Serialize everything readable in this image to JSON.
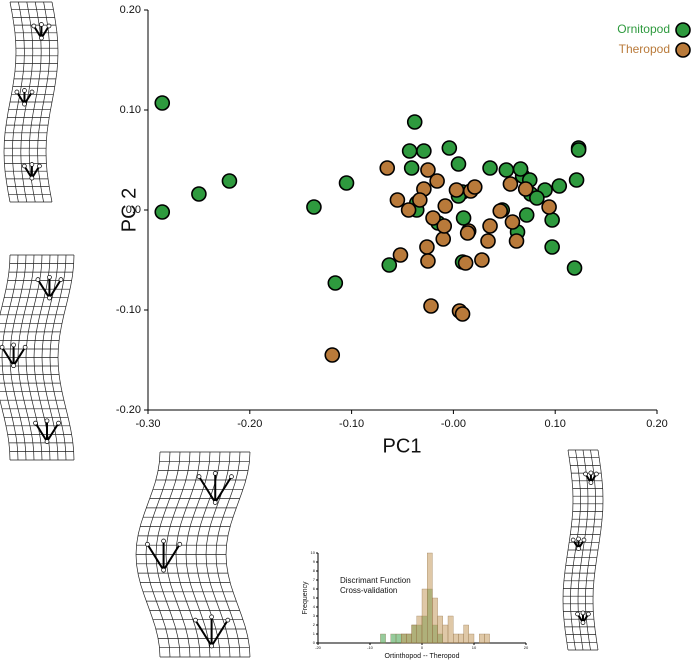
{
  "chart_data": [
    {
      "type": "scatter",
      "xlabel": "PC1",
      "ylabel": "PC 2",
      "xlim": [
        -0.3,
        0.2
      ],
      "ylim": [
        -0.2,
        0.2
      ],
      "xticks": [
        {
          "value": -0.3,
          "label": "-0.30"
        },
        {
          "value": -0.2,
          "label": "-0.20"
        },
        {
          "value": -0.1,
          "label": "-0.10"
        },
        {
          "value": 0,
          "label": "-0.00"
        },
        {
          "value": 0.1,
          "label": "0.10"
        },
        {
          "value": 0.2,
          "label": "0.20"
        }
      ],
      "yticks": [
        {
          "value": 0.2,
          "label": "0.20"
        },
        {
          "value": 0.1,
          "label": "0.10"
        },
        {
          "value": 0,
          "label": "0.0"
        },
        {
          "value": -0.1,
          "label": "-0.10"
        },
        {
          "value": -0.2,
          "label": "-0.20"
        }
      ],
      "legend": "upper right",
      "series": [
        {
          "name": "Ornitopod",
          "color": "#2e9a3e",
          "x": [
            -0.286,
            -0.286,
            -0.25,
            -0.22,
            -0.137,
            -0.105,
            -0.116,
            -0.063,
            -0.038,
            -0.043,
            -0.029,
            -0.041,
            -0.036,
            -0.036,
            -0.004,
            0.005,
            0.009,
            0.005,
            0.01,
            0.009,
            0.036,
            0.052,
            0.068,
            0.066,
            0.075,
            0.076,
            0.09,
            0.104,
            0.121,
            0.123,
            0.123,
            0.082,
            0.072,
            0.063,
            0.097,
            0.097,
            0.119,
            0.048,
            -0.015
          ],
          "values": [
            0.107,
            -0.002,
            0.016,
            0.029,
            0.003,
            0.027,
            -0.073,
            -0.055,
            0.088,
            0.059,
            0.059,
            0.042,
            0.007,
            0.0,
            0.062,
            0.046,
            0.018,
            0.014,
            -0.008,
            -0.052,
            0.042,
            0.04,
            0.034,
            0.041,
            0.03,
            0.016,
            0.02,
            0.024,
            0.03,
            0.062,
            0.06,
            0.012,
            -0.005,
            -0.022,
            -0.01,
            -0.037,
            -0.058,
            0.0,
            -0.013
          ]
        },
        {
          "name": "Theropod",
          "color": "#b97a3a",
          "x": [
            -0.065,
            -0.055,
            -0.052,
            -0.025,
            -0.029,
            -0.016,
            -0.02,
            -0.026,
            -0.025,
            -0.008,
            -0.01,
            -0.009,
            0.003,
            0.017,
            0.021,
            0.015,
            0.014,
            0.012,
            0.028,
            0.036,
            0.034,
            0.046,
            0.056,
            0.071,
            0.058,
            0.062,
            0.094,
            -0.022,
            0.006,
            0.009,
            -0.119,
            -0.044,
            -0.033
          ],
          "values": [
            0.042,
            0.01,
            -0.045,
            0.04,
            0.021,
            0.029,
            -0.008,
            -0.037,
            -0.051,
            0.004,
            -0.029,
            -0.016,
            0.02,
            0.019,
            0.023,
            -0.021,
            -0.023,
            -0.053,
            -0.05,
            -0.016,
            -0.031,
            -0.001,
            0.026,
            0.021,
            -0.012,
            -0.031,
            0.003,
            -0.096,
            -0.101,
            -0.104,
            -0.145,
            0.0,
            0.01
          ]
        }
      ]
    },
    {
      "type": "histogram",
      "title": "Discrimant Function",
      "subtitle": "Cross-validation",
      "xlabel": "Ortinthopod -- Theropod",
      "ylabel": "Frequency",
      "bins": [
        -15,
        -14,
        -13,
        -12,
        -11,
        -10,
        -9,
        -8,
        -7,
        -6,
        -5,
        -4,
        -3,
        -2,
        -1,
        0,
        1,
        2,
        3,
        4,
        5,
        6,
        7,
        8,
        9,
        10,
        11,
        12,
        13,
        14,
        15
      ],
      "xlim": [
        -20,
        20
      ],
      "ylim": [
        0,
        10
      ],
      "xticks": [
        -20,
        -10,
        0,
        10,
        20
      ],
      "yticks": [
        0,
        1,
        2,
        3,
        4,
        5,
        6,
        7,
        8,
        9,
        10
      ],
      "series": [
        {
          "name": "Ornitopod",
          "color": "#3fa04a",
          "values": [
            0,
            0,
            0,
            0,
            0,
            0,
            0,
            1,
            0,
            1,
            1,
            1,
            1,
            2,
            2,
            3,
            6,
            2,
            1,
            0,
            0,
            0,
            0,
            0,
            0,
            0,
            0,
            0,
            0,
            0
          ]
        },
        {
          "name": "Theropod",
          "color": "#c49a5e",
          "values": [
            0,
            0,
            0,
            0,
            0,
            0,
            0,
            0,
            0,
            0,
            0,
            1,
            1,
            2,
            3,
            6,
            10,
            5,
            3,
            2,
            3,
            1,
            1,
            2,
            1,
            0,
            1,
            1,
            0,
            0
          ]
        }
      ]
    }
  ]
}
